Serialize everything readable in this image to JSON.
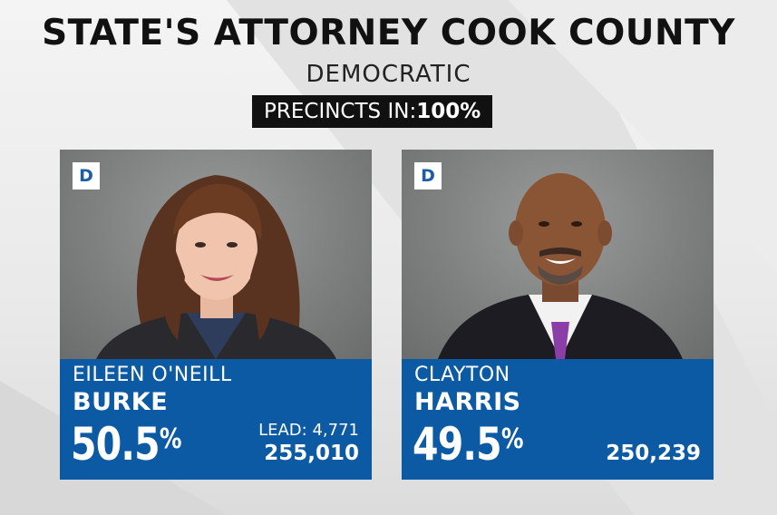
{
  "header": {
    "title": "STATE'S ATTORNEY COOK COUNTY",
    "subtitle": "DEMOCRATIC",
    "precincts_label": "PRECINCTS IN:",
    "precincts_value": "100%"
  },
  "candidates": [
    {
      "party": "D",
      "first_name": "EILEEN O'NEILL",
      "last_name": "BURKE",
      "percent": "50.5",
      "percent_symbol": "%",
      "lead": "LEAD: 4,771",
      "votes": "255,010"
    },
    {
      "party": "D",
      "first_name": "CLAYTON",
      "last_name": "HARRIS",
      "percent": "49.5",
      "percent_symbol": "%",
      "votes": "250,239"
    }
  ],
  "colors": {
    "panel": "#0c5aa3",
    "party_text": "#1b5ea4",
    "precincts_bg": "#111111"
  }
}
